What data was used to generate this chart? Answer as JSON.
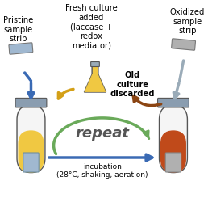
{
  "bg_color": "#ffffff",
  "title": "",
  "text_color": "#000000",
  "labels": {
    "pristine": "Pristine\nsample\nstrip",
    "fresh_culture": "Fresh culture\nadded\n(laccase +\nredox\nmediator)",
    "oxidized": "Oxidized\nsample\nstrip",
    "old_culture": "Old\nculture\ndiscarded",
    "repeat": "repeat",
    "incubation": "incubation\n(28°C, shaking, aeration)"
  },
  "colors": {
    "tube_body_left": "#f5f5f5",
    "tube_fill_left": "#f0c842",
    "tube_cap_left": "#8a9db0",
    "tube_body_right": "#f5f5f5",
    "tube_fill_right": "#c04a1a",
    "tube_cap_right": "#8a9db0",
    "flask_body": "#f0c842",
    "flask_cap": "#9aabb8",
    "arrow_blue": "#3a6ab4",
    "arrow_yellow": "#d4a017",
    "arrow_green": "#6aaa5a",
    "arrow_brown": "#8b4513",
    "arrow_gray": "#9aabb8",
    "strip_pristine": "#a0b8d0",
    "strip_oxidized": "#b0b0b0",
    "repeat_text": "#555555"
  }
}
